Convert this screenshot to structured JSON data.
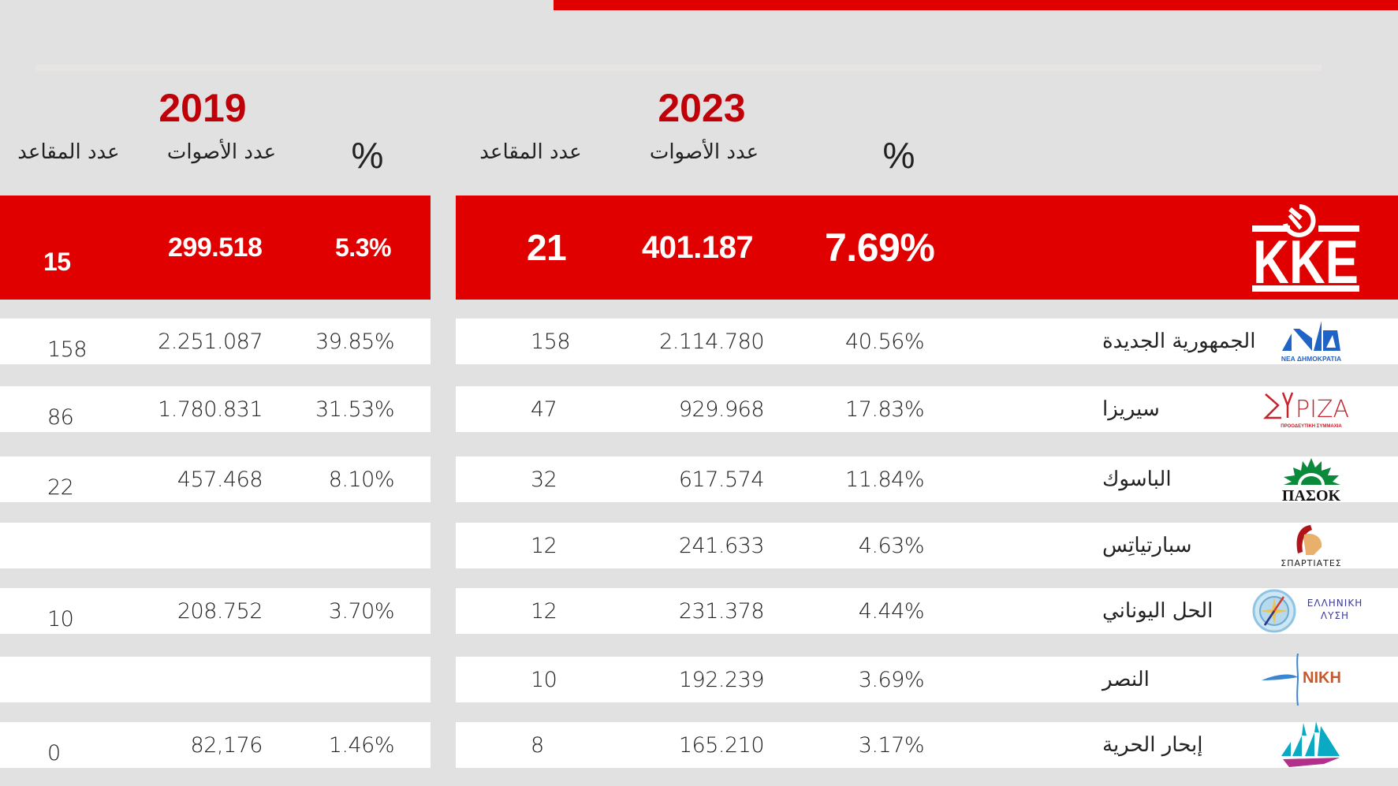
{
  "header": {
    "year_2023": "2023",
    "year_2019": "2019",
    "col_seats": "عدد المقاعد",
    "col_votes": "عدد الأصوات",
    "col_pct": "%"
  },
  "colors": {
    "accent_red": "#e00000",
    "year_red": "#c00008",
    "background": "#e1e1e1"
  },
  "kke": {
    "logo": "kke-hammer-sickle-logo",
    "logo_text": "KKE",
    "y2023": {
      "pct": "7.69%",
      "votes": "401.187",
      "seats": "21"
    },
    "y2019": {
      "pct": "5.3%",
      "votes": "299.518",
      "seats": "15"
    }
  },
  "parties": [
    {
      "name": "الجمهورية الجديدة",
      "logo": "nea-dimokratia-logo",
      "logo_text": "ΝΕΑ ΔΗΜΟΚΡΑΤΙΑ",
      "y2023": {
        "pct": "40.56%",
        "votes": "2.114.780",
        "seats": "158"
      },
      "y2019": {
        "pct": "39.85%",
        "votes": "2.251.087",
        "seats": "158"
      }
    },
    {
      "name": "سيريزا",
      "logo": "syriza-logo",
      "logo_text": "ΣΥΡΙΖΑ",
      "logo_sub": "ΠΡΟΟΔΕΥΤΙΚΗ ΣΥΜΜΑΧΙΑ",
      "y2023": {
        "pct": "17.83%",
        "votes": "929.968",
        "seats": "47"
      },
      "y2019": {
        "pct": "31.53%",
        "votes": "1.780.831",
        "seats": "86"
      }
    },
    {
      "name": "الباسوك",
      "logo": "pasok-logo",
      "logo_text": "ΠΑΣΟΚ",
      "y2023": {
        "pct": "11.84%",
        "votes": "617.574",
        "seats": "32"
      },
      "y2019": {
        "pct": "8.10%",
        "votes": "457.468",
        "seats": "22"
      }
    },
    {
      "name": "سبارتياتِس",
      "logo": "spartiates-logo",
      "logo_text": "ΣΠΑΡΤΙΑΤΕΣ",
      "y2023": {
        "pct": "4.63%",
        "votes": "241.633",
        "seats": "12"
      },
      "y2019": {
        "pct": "",
        "votes": "",
        "seats": ""
      }
    },
    {
      "name": "الحل اليوناني",
      "logo": "elliniki-lysi-logo",
      "logo_text": "ΕΛΛΗΝΙΚΗ",
      "logo_sub": "ΛΥΣΗ",
      "y2023": {
        "pct": "4.44%",
        "votes": "231.378",
        "seats": "12"
      },
      "y2019": {
        "pct": "3.70%",
        "votes": "208.752",
        "seats": "10"
      }
    },
    {
      "name": "النصر",
      "logo": "niki-logo",
      "logo_text": "NIKH",
      "y2023": {
        "pct": "3.69%",
        "votes": "192.239",
        "seats": "10"
      },
      "y2019": {
        "pct": "",
        "votes": "",
        "seats": ""
      }
    },
    {
      "name": "إبحار الحرية",
      "logo": "plefsi-eleftherias-logo",
      "logo_text": "",
      "y2023": {
        "pct": "3.17%",
        "votes": "165.210",
        "seats": "8"
      },
      "y2019": {
        "pct": "1.46%",
        "votes": "82,176",
        "seats": "0"
      }
    }
  ],
  "chart_data": {
    "type": "table",
    "title": "Greek parliamentary election results 2023 vs 2019",
    "columns": [
      "party",
      "2023 %",
      "2023 votes",
      "2023 seats",
      "2019 %",
      "2019 votes",
      "2019 seats"
    ],
    "rows": [
      [
        "KKE",
        7.69,
        401187,
        21,
        5.3,
        299518,
        15
      ],
      [
        "الجمهورية الجديدة",
        40.56,
        2114780,
        158,
        39.85,
        2251087,
        158
      ],
      [
        "سيريزا",
        17.83,
        929968,
        47,
        31.53,
        1780831,
        86
      ],
      [
        "الباسوك",
        11.84,
        617574,
        32,
        8.1,
        457468,
        22
      ],
      [
        "سبارتياتِس",
        4.63,
        241633,
        12,
        null,
        null,
        null
      ],
      [
        "الحل اليوناني",
        4.44,
        231378,
        12,
        3.7,
        208752,
        10
      ],
      [
        "النصر",
        3.69,
        192239,
        10,
        null,
        null,
        null
      ],
      [
        "إبحار الحرية",
        3.17,
        165210,
        8,
        1.46,
        82176,
        0
      ]
    ]
  }
}
